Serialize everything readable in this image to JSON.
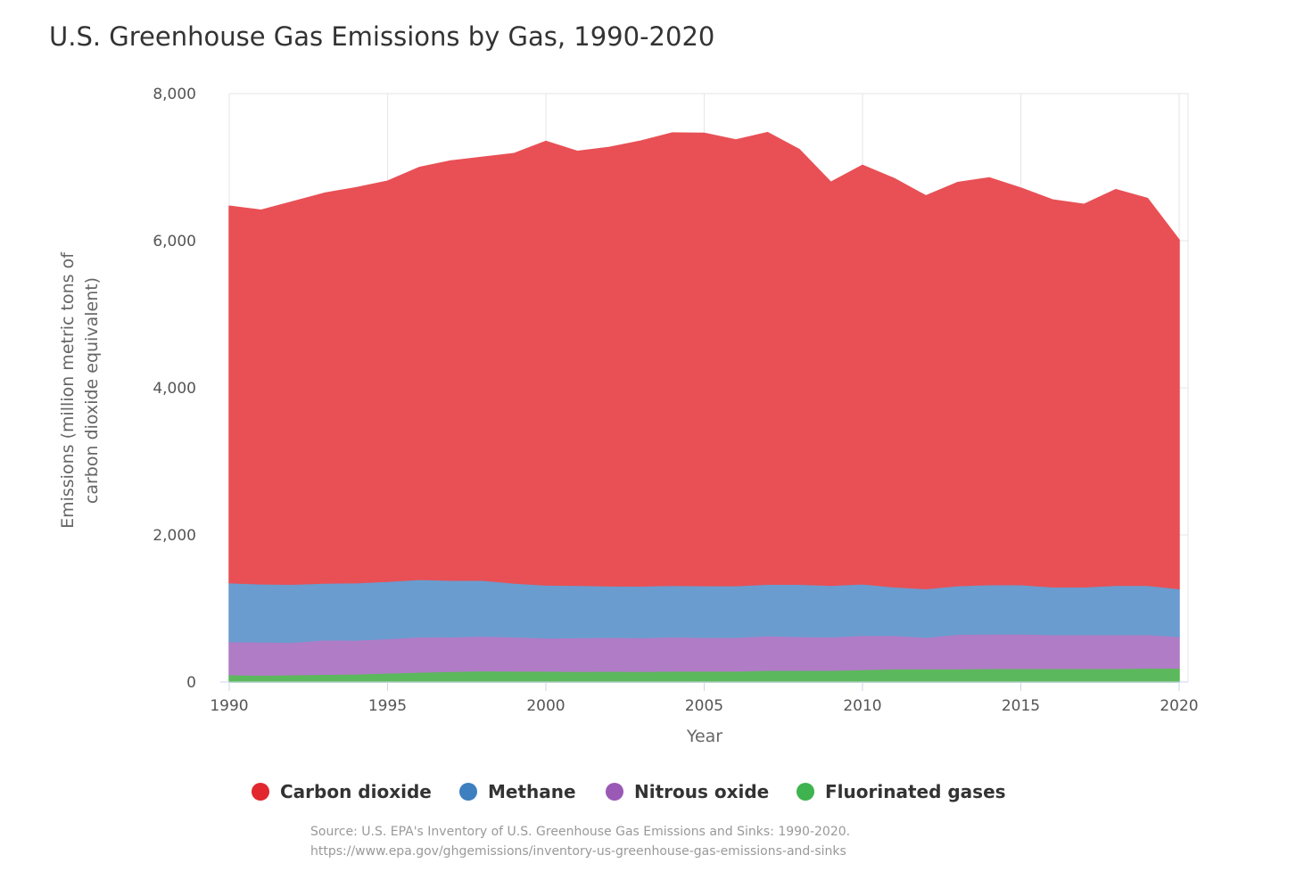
{
  "chart_data": {
    "type": "area",
    "stacked": true,
    "title": "U.S. Greenhouse Gas Emissions by Gas, 1990-2020",
    "xlabel": "Year",
    "ylabel_lines": [
      "Emissions (million metric tons of",
      "carbon dioxide equivalent)"
    ],
    "xlim": [
      1990,
      2020
    ],
    "ylim": [
      0,
      8000
    ],
    "x_ticks": [
      1990,
      1995,
      2000,
      2005,
      2010,
      2015,
      2020
    ],
    "y_ticks": [
      0,
      2000,
      4000,
      6000,
      8000
    ],
    "y_tick_labels": [
      "0",
      "2,000",
      "4,000",
      "6,000",
      "8,000"
    ],
    "grid": true,
    "legend_position": "bottom",
    "x": [
      1990,
      1991,
      1992,
      1993,
      1994,
      1995,
      1996,
      1997,
      1998,
      1999,
      2000,
      2001,
      2002,
      2003,
      2004,
      2005,
      2006,
      2007,
      2008,
      2009,
      2010,
      2011,
      2012,
      2013,
      2014,
      2015,
      2016,
      2017,
      2018,
      2019,
      2020
    ],
    "series": [
      {
        "name": "Fluorinated gases",
        "color": "#5cb85c",
        "values": [
          100,
          95,
          100,
          105,
          110,
          125,
          135,
          145,
          155,
          150,
          150,
          145,
          148,
          145,
          150,
          150,
          150,
          160,
          160,
          160,
          170,
          180,
          180,
          180,
          185,
          185,
          185,
          185,
          185,
          190,
          190
        ]
      },
      {
        "name": "Nitrous oxide",
        "color": "#b07cc6",
        "values": [
          450,
          450,
          440,
          470,
          460,
          465,
          480,
          470,
          470,
          465,
          450,
          460,
          460,
          460,
          465,
          460,
          460,
          470,
          460,
          455,
          465,
          455,
          430,
          470,
          470,
          470,
          460,
          460,
          460,
          455,
          430
        ]
      },
      {
        "name": "Methane",
        "color": "#6a9ccf",
        "values": [
          800,
          790,
          790,
          770,
          780,
          780,
          780,
          770,
          760,
          730,
          720,
          710,
          700,
          700,
          700,
          700,
          700,
          700,
          710,
          700,
          700,
          660,
          660,
          660,
          670,
          670,
          650,
          650,
          670,
          670,
          650
        ]
      },
      {
        "name": "Carbon dioxide",
        "color": "#e85055",
        "values": [
          5120,
          5080,
          5200,
          5300,
          5370,
          5440,
          5600,
          5700,
          5750,
          5840,
          6030,
          5900,
          5960,
          6050,
          6150,
          6150,
          6060,
          6140,
          5910,
          5480,
          5690,
          5550,
          5340,
          5480,
          5530,
          5390,
          5260,
          5200,
          5380,
          5260,
          4740
        ]
      }
    ]
  },
  "legend": [
    {
      "label": "Carbon dioxide",
      "color": "#e0282e"
    },
    {
      "label": "Methane",
      "color": "#3d7fbf"
    },
    {
      "label": "Nitrous oxide",
      "color": "#9b59b6"
    },
    {
      "label": "Fluorinated gases",
      "color": "#3fb34f"
    }
  ],
  "source": {
    "line1": "Source: U.S. EPA's Inventory of U.S. Greenhouse Gas Emissions and Sinks: 1990-2020.",
    "line2": "https://www.epa.gov/ghgemissions/inventory-us-greenhouse-gas-emissions-and-sinks"
  }
}
